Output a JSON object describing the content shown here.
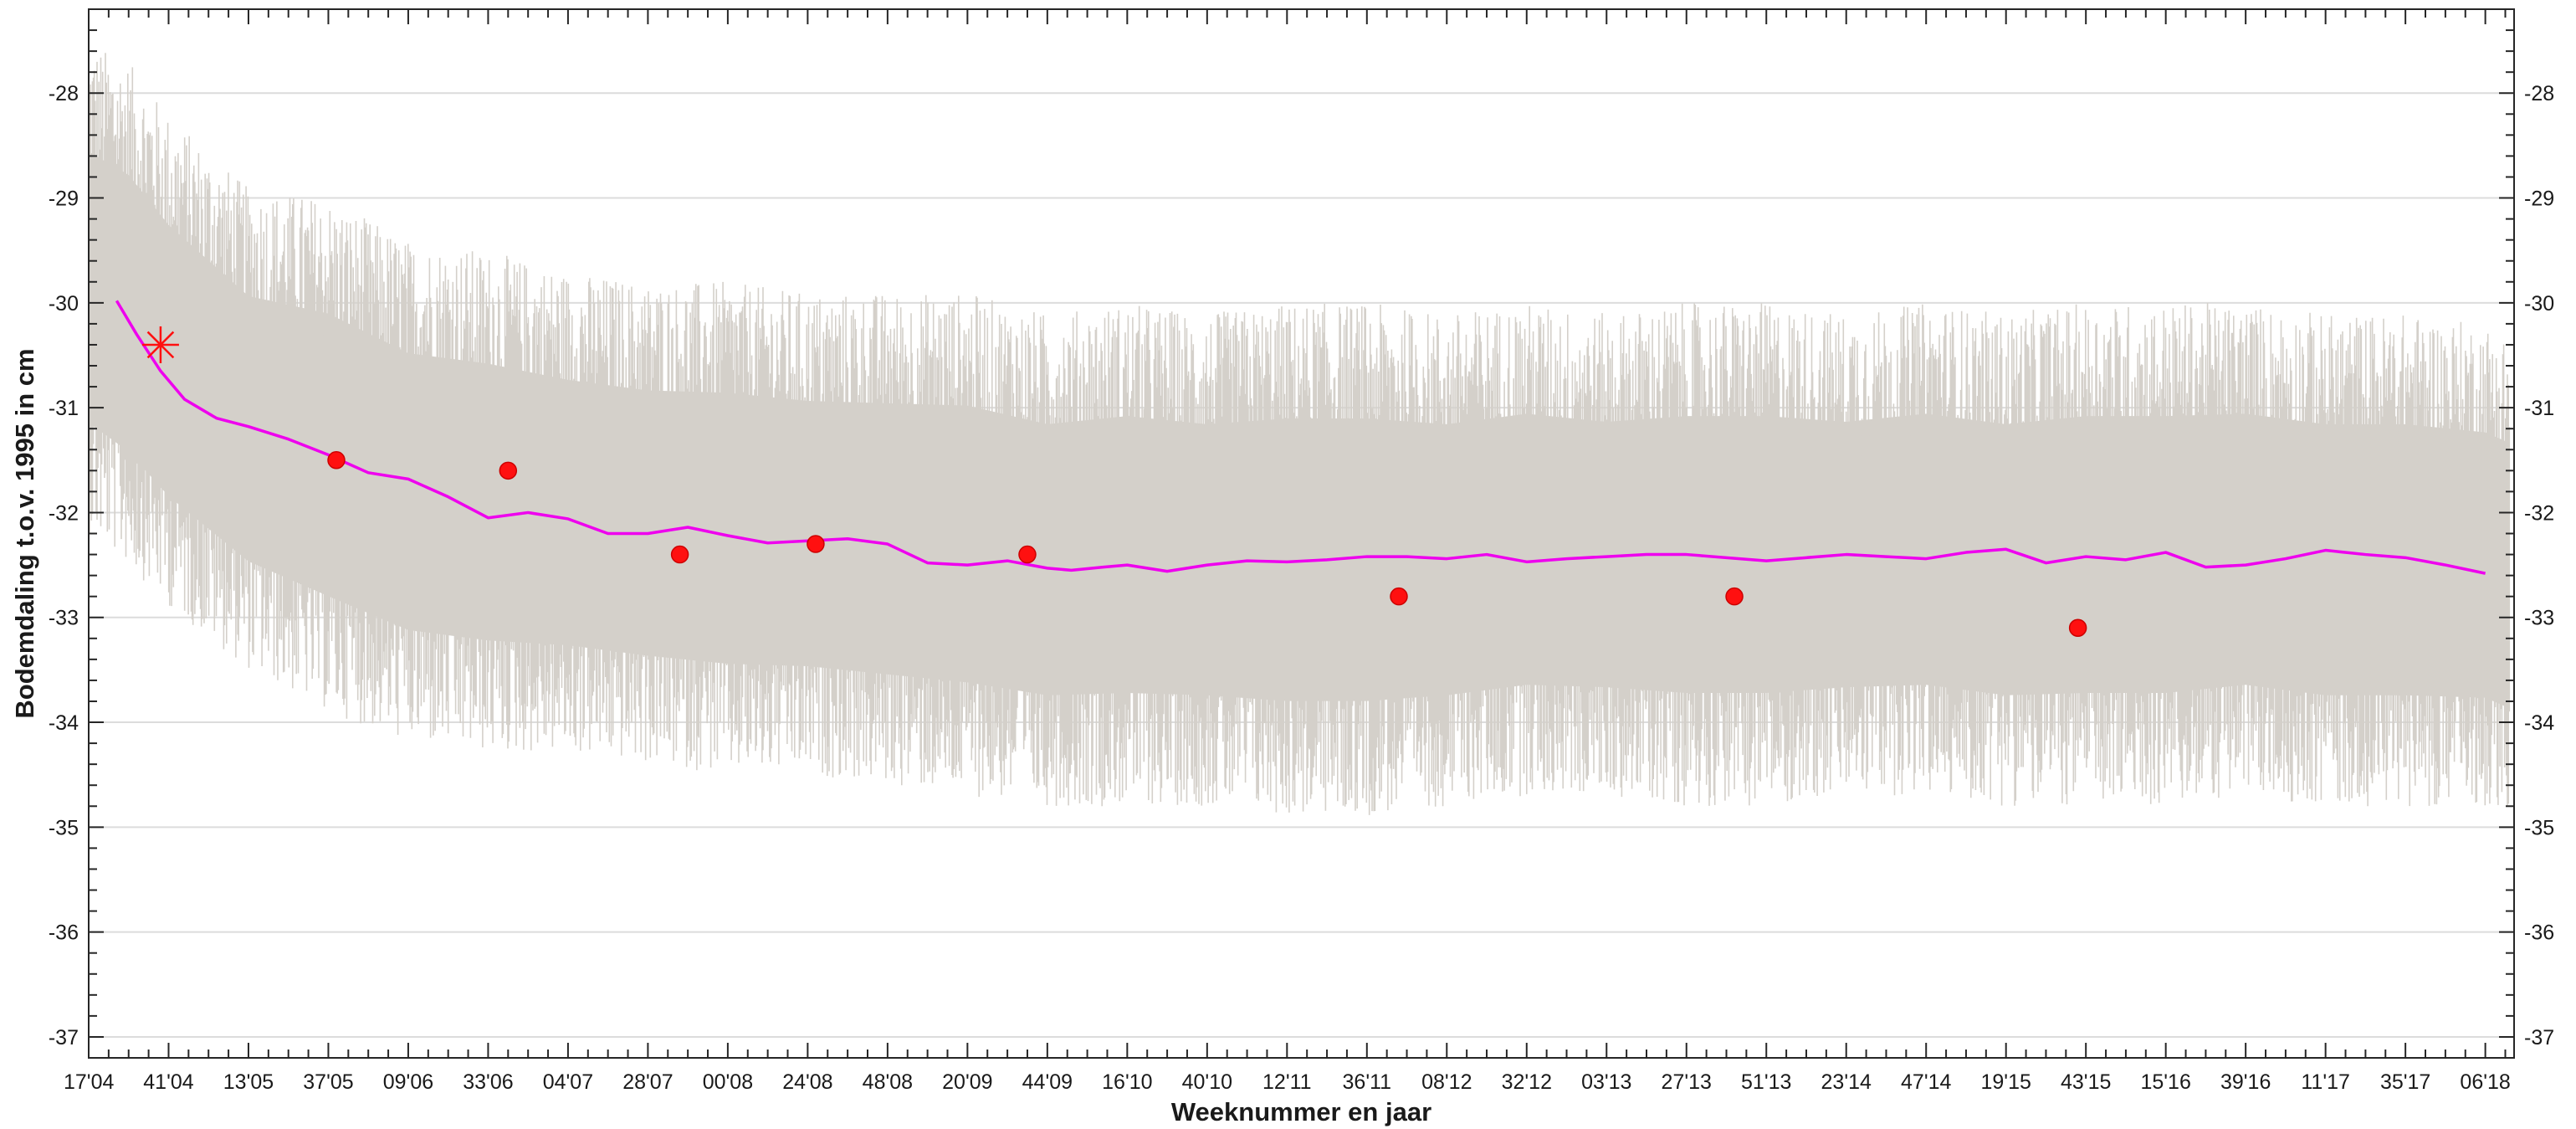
{
  "chart_data": {
    "type": "line",
    "title": "",
    "xlabel": "Weeknummer en jaar",
    "ylabel": "Bodemdaling t.o.v. 1995 in cm",
    "ylim": [
      -37.2,
      -27.2
    ],
    "yticks": [
      -37,
      -36,
      -35,
      -34,
      -33,
      -32,
      -31,
      -30,
      -29,
      -28
    ],
    "xlim": [
      0,
      30.36
    ],
    "xtick_labels": [
      "17'04",
      "41'04",
      "13'05",
      "37'05",
      "09'06",
      "33'06",
      "04'07",
      "28'07",
      "00'08",
      "24'08",
      "48'08",
      "20'09",
      "44'09",
      "16'10",
      "40'10",
      "12'11",
      "36'11",
      "08'12",
      "32'12",
      "03'13",
      "27'13",
      "51'13",
      "23'14",
      "47'14",
      "19'15",
      "43'15",
      "15'16",
      "39'16",
      "11'17",
      "35'17",
      "06'18"
    ],
    "grid": "horizontal",
    "legend": "none",
    "series": [
      {
        "kind": "band",
        "color": "#d4d0ca",
        "x": [
          0,
          0.5,
          1,
          2,
          3,
          4,
          5,
          6,
          7,
          8,
          9,
          10,
          11,
          12,
          13,
          14,
          15,
          16,
          17,
          18,
          19,
          20,
          21,
          22,
          23,
          24,
          25,
          26,
          27,
          28,
          29,
          30,
          30.3
        ],
        "upper": [
          -27.5,
          -27.7,
          -28.2,
          -28.9,
          -29.0,
          -29.4,
          -29.5,
          -29.7,
          -29.8,
          -29.8,
          -29.9,
          -29.9,
          -29.9,
          -30.1,
          -30.0,
          -30.1,
          -30.0,
          -30.0,
          -30.1,
          -30.0,
          -30.1,
          -30.0,
          -30.0,
          -30.1,
          -30.0,
          -30.1,
          -30.0,
          -30.0,
          -30.0,
          -30.1,
          -30.1,
          -30.2,
          -30.3
        ],
        "lower": [
          -32.2,
          -32.5,
          -32.9,
          -33.5,
          -33.9,
          -34.2,
          -34.3,
          -34.3,
          -34.4,
          -34.5,
          -34.5,
          -34.6,
          -34.7,
          -34.8,
          -34.8,
          -34.8,
          -34.9,
          -34.9,
          -34.8,
          -34.7,
          -34.7,
          -34.8,
          -34.8,
          -34.7,
          -34.7,
          -34.8,
          -34.8,
          -34.8,
          -34.7,
          -34.8,
          -34.8,
          -34.8,
          -34.9
        ]
      },
      {
        "kind": "line",
        "color": "#ee00ee",
        "x": [
          0.35,
          0.6,
          0.9,
          1.2,
          1.6,
          2.0,
          2.5,
          3.0,
          3.5,
          4.0,
          4.5,
          5.0,
          5.5,
          6.0,
          6.5,
          7.0,
          7.5,
          8.0,
          8.5,
          9.0,
          9.5,
          10.0,
          10.5,
          11.0,
          11.5,
          12.0,
          12.3,
          12.7,
          13.0,
          13.5,
          14.0,
          14.5,
          15.0,
          15.5,
          16.0,
          16.5,
          17.0,
          17.5,
          18.0,
          18.5,
          19.0,
          19.5,
          20.0,
          20.5,
          21.0,
          21.5,
          22.0,
          22.5,
          23.0,
          23.5,
          24.0,
          24.5,
          25.0,
          25.5,
          26.0,
          26.5,
          27.0,
          27.5,
          28.0,
          28.5,
          29.0,
          29.5,
          30.0
        ],
        "values": [
          -29.98,
          -30.3,
          -30.65,
          -30.92,
          -31.1,
          -31.18,
          -31.3,
          -31.45,
          -31.62,
          -31.68,
          -31.85,
          -32.05,
          -32.0,
          -32.06,
          -32.2,
          -32.2,
          -32.14,
          -32.22,
          -32.29,
          -32.27,
          -32.25,
          -32.3,
          -32.48,
          -32.5,
          -32.46,
          -32.53,
          -32.55,
          -32.52,
          -32.5,
          -32.56,
          -32.5,
          -32.46,
          -32.47,
          -32.45,
          -32.42,
          -32.42,
          -32.44,
          -32.4,
          -32.47,
          -32.44,
          -32.42,
          -32.4,
          -32.4,
          -32.43,
          -32.46,
          -32.43,
          -32.4,
          -32.42,
          -32.44,
          -32.38,
          -32.35,
          -32.48,
          -32.42,
          -32.45,
          -32.38,
          -32.52,
          -32.5,
          -32.44,
          -32.36,
          -32.4,
          -32.43,
          -32.5,
          -32.58
        ]
      },
      {
        "kind": "scatter",
        "color": "#ff1010",
        "x": [
          3.1,
          5.25,
          7.4,
          9.1,
          11.75,
          16.4,
          20.6,
          24.9
        ],
        "values": [
          -31.5,
          -31.6,
          -32.4,
          -32.3,
          -32.4,
          -32.8,
          -32.8,
          -33.1
        ]
      },
      {
        "kind": "star",
        "color": "#ff1010",
        "x": [
          0.9
        ],
        "values": [
          -30.4
        ]
      }
    ]
  }
}
